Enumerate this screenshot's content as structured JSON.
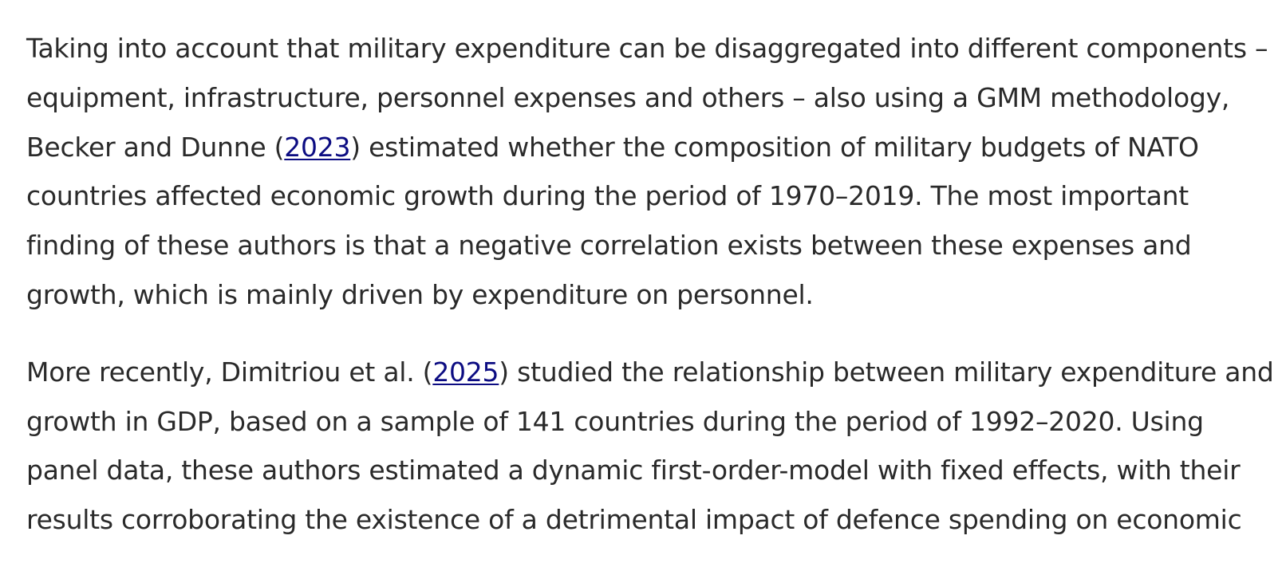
{
  "paragraphs": [
    {
      "lines": [
        {
          "text": "Taking into account that military expenditure can be disaggregated into different components –"
        },
        {
          "text": "equipment, infrastructure, personnel expenses and others – also using a GMM methodology,"
        },
        {
          "before": "Becker and Dunne (",
          "link": "2023",
          "after": ") estimated whether the composition of military budgets of NATO"
        },
        {
          "text": "countries affected economic growth during the period of 1970–2019. The most important"
        },
        {
          "text": "finding of these authors is that a negative correlation exists between these expenses and"
        },
        {
          "text": "growth, which is mainly driven by expenditure on personnel."
        }
      ]
    },
    {
      "lines": [
        {
          "before": "More recently, Dimitriou et al. (",
          "link": "2025",
          "after": ") studied the relationship between military expenditure and"
        },
        {
          "text": "growth in GDP, based on a sample of 141 countries during the period of 1992–2020. Using"
        },
        {
          "text": "panel data, these authors estimated a dynamic first-order-model with fixed effects, with their"
        },
        {
          "text": "results corroborating the existence of a detrimental impact of defence spending on economic"
        }
      ]
    }
  ],
  "colors": {
    "text": "#2a2a2a",
    "link": "#0c0c82",
    "background": "#ffffff"
  }
}
